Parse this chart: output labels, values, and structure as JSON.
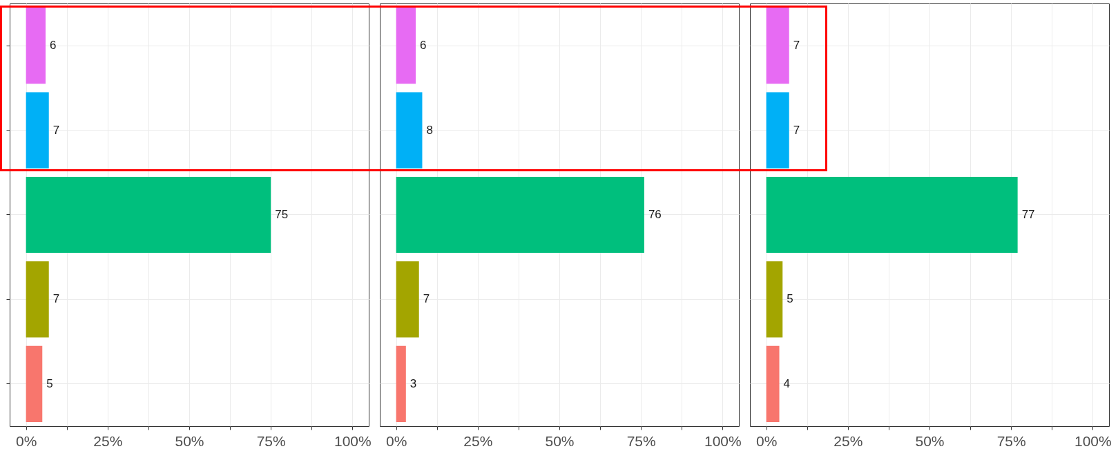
{
  "chart_data": [
    {
      "type": "bar",
      "orientation": "horizontal",
      "categories": [
        null,
        null,
        null,
        null,
        null
      ],
      "values": [
        6,
        7,
        75,
        7,
        5
      ],
      "colors": [
        "#e76bf3",
        "#00b0f6",
        "#00bf7d",
        "#a3a500",
        "#f8766d"
      ],
      "xlim": [
        -5,
        105
      ],
      "xticks": [
        {
          "value": 0,
          "label": "0%"
        },
        {
          "value": 12.5,
          "label": null
        },
        {
          "value": 25,
          "label": "25%"
        },
        {
          "value": 37.5,
          "label": null
        },
        {
          "value": 50,
          "label": "50%"
        },
        {
          "value": 62.5,
          "label": null
        },
        {
          "value": 75,
          "label": "75%"
        },
        {
          "value": 87.5,
          "label": null
        },
        {
          "value": 100,
          "label": "100%"
        }
      ],
      "data_labels": true,
      "grid": true,
      "tick_labels": "x"
    },
    {
      "type": "bar",
      "orientation": "horizontal",
      "categories": [
        null,
        null,
        null,
        null,
        null
      ],
      "values": [
        6,
        8,
        76,
        7,
        3
      ],
      "colors": [
        "#e76bf3",
        "#00b0f6",
        "#00bf7d",
        "#a3a500",
        "#f8766d"
      ],
      "xlim": [
        -5,
        105
      ],
      "xticks": [
        {
          "value": 0,
          "label": "0%"
        },
        {
          "value": 12.5,
          "label": null
        },
        {
          "value": 25,
          "label": "25%"
        },
        {
          "value": 37.5,
          "label": null
        },
        {
          "value": 50,
          "label": "50%"
        },
        {
          "value": 62.5,
          "label": null
        },
        {
          "value": 75,
          "label": "75%"
        },
        {
          "value": 87.5,
          "label": null
        },
        {
          "value": 100,
          "label": "100%"
        }
      ],
      "data_labels": true,
      "grid": true,
      "tick_labels": "x"
    },
    {
      "type": "bar",
      "orientation": "horizontal",
      "categories": [
        null,
        null,
        null,
        null,
        null
      ],
      "values": [
        7,
        7,
        77,
        5,
        4
      ],
      "colors": [
        "#e76bf3",
        "#00b0f6",
        "#00bf7d",
        "#a3a500",
        "#f8766d"
      ],
      "xlim": [
        -5,
        105
      ],
      "xticks": [
        {
          "value": 0,
          "label": "0%"
        },
        {
          "value": 12.5,
          "label": null
        },
        {
          "value": 25,
          "label": "25%"
        },
        {
          "value": 37.5,
          "label": null
        },
        {
          "value": 50,
          "label": "50%"
        },
        {
          "value": 62.5,
          "label": null
        },
        {
          "value": 75,
          "label": "75%"
        },
        {
          "value": 87.5,
          "label": null
        },
        {
          "value": 100,
          "label": "100%"
        }
      ],
      "data_labels": true,
      "grid": true,
      "tick_labels": "x"
    }
  ]
}
